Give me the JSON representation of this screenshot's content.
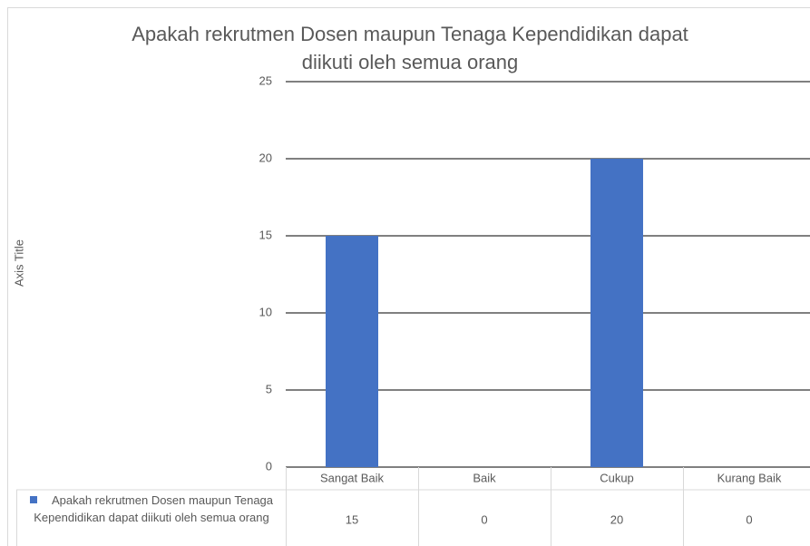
{
  "chart_data": {
    "type": "bar",
    "title": "Apakah rekrutmen Dosen maupun Tenaga Kependidikan dapat diikuti oleh semua orang",
    "y_axis_title": "Axis Title",
    "categories": [
      "Sangat Baik",
      "Baik",
      "Cukup",
      "Kurang Baik"
    ],
    "series": [
      {
        "name": "Apakah rekrutmen Dosen maupun Tenaga Kependidikan dapat diikuti oleh semua orang",
        "color": "#4472c4",
        "values": [
          15,
          0,
          20,
          0
        ]
      }
    ],
    "ylim": [
      0,
      25
    ],
    "yticks": [
      0,
      5,
      10,
      15,
      20,
      25
    ],
    "grid": true,
    "data_table": true
  }
}
